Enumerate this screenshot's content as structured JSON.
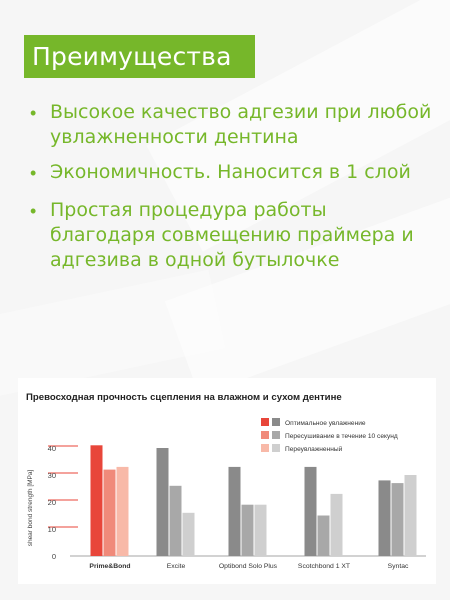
{
  "header": {
    "title": "Преимущества"
  },
  "bullets": [
    {
      "text": "Высокое качество адгезии при любой увлажненности дентина"
    },
    {
      "text": "Экономичность. Наносится в 1 слой"
    },
    {
      "text": "Простая процедура работы благодаря совмещению праймера и адгезива в одной бутылочке"
    }
  ],
  "bullet_glyph": "•",
  "colors": {
    "accent": "#76b72a"
  },
  "chart_data": {
    "type": "bar",
    "title": "Превосходная прочность сцепления на влажном и сухом дентине",
    "ylabel": "shear bond strength [MPa]",
    "xlabel": "",
    "ylim": [
      0,
      45
    ],
    "yticks": [
      0,
      10,
      20,
      30,
      40
    ],
    "legend_position": "top-right",
    "categories": [
      "Prime&Bond",
      "Excite",
      "Optibond Solo Plus",
      "Scotchbond 1 XT",
      "Syntac"
    ],
    "series": [
      {
        "name": "Оптимальное увлажнение",
        "values": [
          41,
          40,
          33,
          33,
          28
        ],
        "color": "#e8463a",
        "color_others": "#8a8a8a"
      },
      {
        "name": "Пересушивание в течение 10 секунд",
        "values": [
          32,
          26,
          19,
          15,
          27
        ],
        "color": "#f08a7a",
        "color_others": "#a8a8a8"
      },
      {
        "name": "Переувлажненный",
        "values": [
          33,
          16,
          19,
          23,
          30
        ],
        "color": "#f8b9a8",
        "color_others": "#cfcfcf"
      }
    ],
    "highlight_category": "Prime&Bond",
    "grid": false
  }
}
